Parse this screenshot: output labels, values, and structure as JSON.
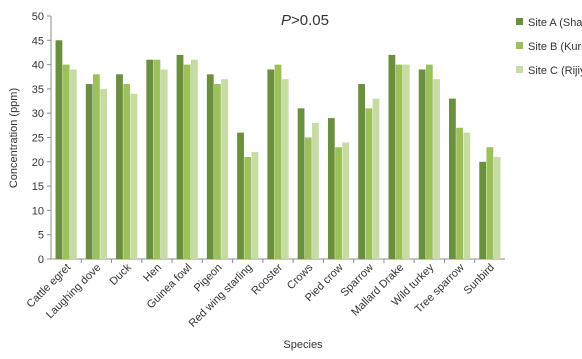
{
  "chart_data": {
    "type": "bar",
    "annotation": {
      "italic": "P",
      "rest": ">0.05"
    },
    "xlabel": "Species",
    "ylabel": "Concentration (ppm)",
    "ylim": [
      0,
      50
    ],
    "yticks": [
      0,
      5,
      10,
      15,
      20,
      25,
      30,
      35,
      40,
      45,
      50
    ],
    "grid": false,
    "legend_position": "top-right",
    "categories": [
      "Cattle egret",
      "Laughing dove",
      "Duck",
      "Hen",
      "Guinea fowl",
      "Pigeon",
      "Red wing starling",
      "Rooster",
      "Crows",
      "Pied crow",
      "Sparrow",
      "Mallard Drake",
      "Wild turkey",
      "Tree sparrow",
      "Sunbird"
    ],
    "series": [
      {
        "name": "Site A (Sharada)",
        "color": "#6a8f3d",
        "values": [
          45,
          36,
          38,
          41,
          42,
          38,
          26,
          39,
          31,
          29,
          36,
          42,
          39,
          33,
          20
        ]
      },
      {
        "name": "Site B (Kurmi market)",
        "color": "#9cc05a",
        "values": [
          40,
          38,
          36,
          41,
          40,
          36,
          21,
          40,
          25,
          23,
          31,
          40,
          40,
          27,
          23
        ]
      },
      {
        "name": "Site C (Rijiyar Lemo)",
        "color": "#c6dca4",
        "values": [
          39,
          35,
          34,
          39,
          41,
          37,
          22,
          37,
          28,
          24,
          33,
          40,
          37,
          26,
          21
        ]
      }
    ]
  }
}
